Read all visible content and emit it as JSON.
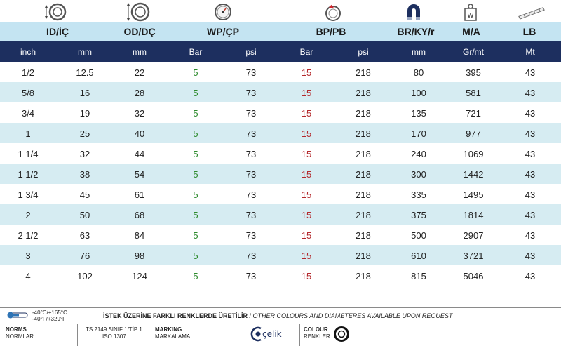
{
  "groups": [
    "ID/İÇ",
    "OD/DÇ",
    "WP/ÇP",
    "BP/PB",
    "BR/KY/r",
    "M/A",
    "LB"
  ],
  "units": [
    "inch",
    "mm",
    "mm",
    "Bar",
    "psi",
    "Bar",
    "psi",
    "mm",
    "Gr/mt",
    "Mt"
  ],
  "icons": [
    "inner-diameter-icon",
    "outer-diameter-icon",
    "pressure-gauge-icon",
    "burst-pressure-icon",
    "bend-radius-magnet-icon",
    "weight-icon",
    "length-ruler-icon"
  ],
  "rows": [
    [
      "1/2",
      "12.5",
      "22",
      "5",
      "73",
      "15",
      "218",
      "80",
      "395",
      "43"
    ],
    [
      "5/8",
      "16",
      "28",
      "5",
      "73",
      "15",
      "218",
      "100",
      "581",
      "43"
    ],
    [
      "3/4",
      "19",
      "32",
      "5",
      "73",
      "15",
      "218",
      "135",
      "721",
      "43"
    ],
    [
      "1",
      "25",
      "40",
      "5",
      "73",
      "15",
      "218",
      "170",
      "977",
      "43"
    ],
    [
      "1 1/4",
      "32",
      "44",
      "5",
      "73",
      "15",
      "218",
      "240",
      "1069",
      "43"
    ],
    [
      "1 1/2",
      "38",
      "54",
      "5",
      "73",
      "15",
      "218",
      "300",
      "1442",
      "43"
    ],
    [
      "1 3/4",
      "45",
      "61",
      "5",
      "73",
      "15",
      "218",
      "335",
      "1495",
      "43"
    ],
    [
      "2",
      "50",
      "68",
      "5",
      "73",
      "15",
      "218",
      "375",
      "1814",
      "43"
    ],
    [
      "2 1/2",
      "63",
      "84",
      "5",
      "73",
      "15",
      "218",
      "500",
      "2907",
      "43"
    ],
    [
      "3",
      "76",
      "98",
      "5",
      "73",
      "15",
      "218",
      "610",
      "3721",
      "43"
    ],
    [
      "4",
      "102",
      "124",
      "5",
      "73",
      "15",
      "218",
      "815",
      "5046",
      "43"
    ]
  ],
  "footer": {
    "temp_c": "-40°C/+165°C",
    "temp_f": "-40°F/+329°F",
    "notice_tr": "İSTEK ÜZERİNE FARKLI RENKLERDE ÜRETİLİR",
    "notice_sep": " / ",
    "notice_en": "OTHER COLOURS AND DIAMETERES AVAILABLE UPON REOUEST",
    "norms_label": "NORMS",
    "norms_label_tr": "NORMLAR",
    "norms_value_1": "TS 2149 SINIF 1/TİP 1",
    "norms_value_2": "ISO 1307",
    "marking_label": "MARKING",
    "marking_label_tr": "MARKALAMA",
    "brand": "çelik",
    "colour_label": "COLOUR",
    "colour_label_tr": "RENKLER"
  },
  "colors": {
    "group_bg": "#c4e4f2",
    "unit_bg": "#1d2f5f",
    "alt_row": "#d6ecf2",
    "wp": "#2e8b2e",
    "bp": "#b3282c"
  }
}
